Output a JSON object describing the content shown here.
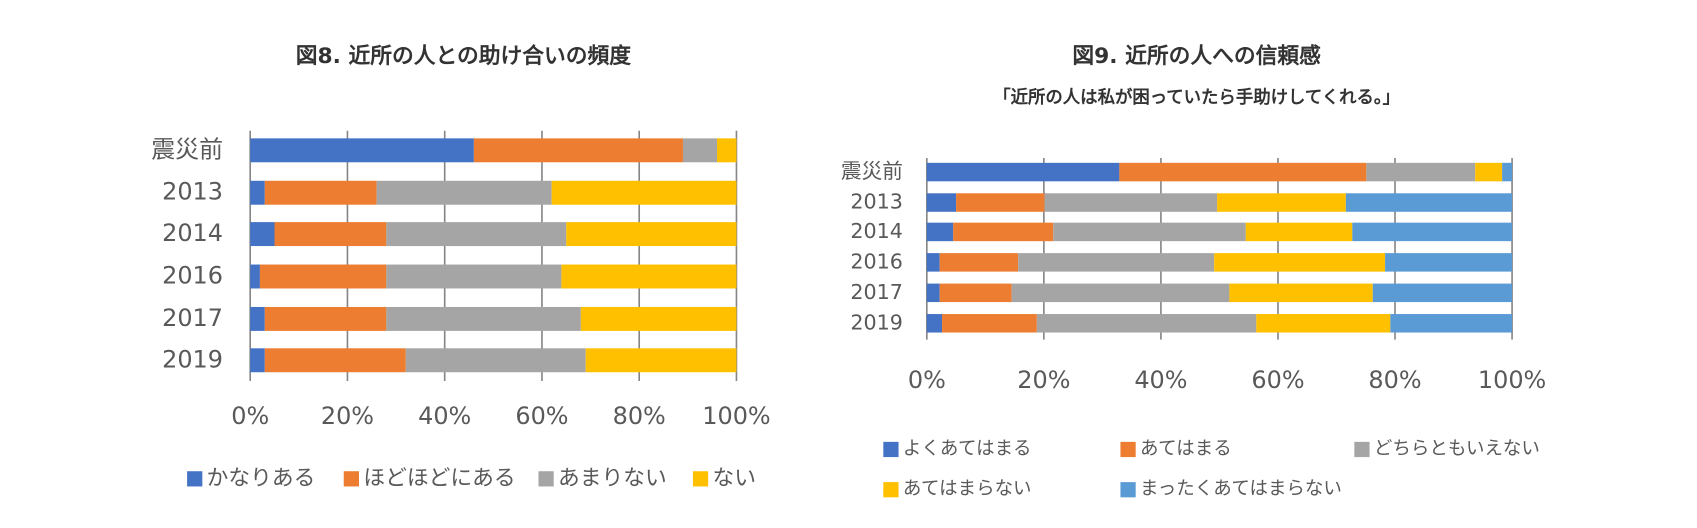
{
  "chart_data": [
    {
      "type": "stacked_barh",
      "title": "図8. 近所の人との助け合いの頻度",
      "categories": [
        "震災前",
        "2013",
        "2014",
        "2016",
        "2017",
        "2019"
      ],
      "series": [
        {
          "name": "かなりある",
          "color": "#4472c4",
          "values": [
            46,
            3,
            5,
            2,
            3,
            3
          ]
        },
        {
          "name": "ほどほどにある",
          "color": "#ed7d31",
          "values": [
            43,
            23,
            23,
            26,
            25,
            29
          ]
        },
        {
          "name": "あまりない",
          "color": "#a5a5a5",
          "values": [
            7,
            36,
            37,
            36,
            40,
            37
          ]
        },
        {
          "name": "ない",
          "color": "#ffc000",
          "values": [
            4,
            38,
            35,
            36,
            32,
            31
          ]
        }
      ],
      "xlim": [
        0,
        100
      ],
      "xticks": [
        {
          "value": 0,
          "label": "0%"
        },
        {
          "value": 20,
          "label": "20%"
        },
        {
          "value": 40,
          "label": "40%"
        },
        {
          "value": 60,
          "label": "60%"
        },
        {
          "value": 80,
          "label": "80%"
        },
        {
          "value": 100,
          "label": "100%"
        }
      ],
      "grid": true,
      "legend": "bottom"
    },
    {
      "type": "stacked_barh",
      "title": "図9. 近所の人への信頼感",
      "subtitle": "「近所の人は私が困っていたら手助けしてくれる。」",
      "categories": [
        "震災前",
        "2013",
        "2014",
        "2016",
        "2017",
        "2019"
      ],
      "series": [
        {
          "name": "よくあてはまる",
          "color": "#4472c4",
          "values": [
            32.9,
            5.0,
            4.5,
            2.2,
            2.2,
            2.6
          ]
        },
        {
          "name": "あてはまる",
          "color": "#ed7d31",
          "values": [
            42.2,
            15.1,
            17.1,
            13.4,
            12.3,
            16.2
          ]
        },
        {
          "name": "どちらともいえない",
          "color": "#a5a5a5",
          "values": [
            18.6,
            29.5,
            32.9,
            33.5,
            37.2,
            37.5
          ]
        },
        {
          "name": "あてはまらない",
          "color": "#ffc000",
          "values": [
            4.6,
            22.0,
            18.2,
            29.2,
            24.5,
            22.9
          ]
        },
        {
          "name": "まったくあてはまらない",
          "color": "#5b9bd5",
          "values": [
            1.7,
            28.4,
            27.3,
            21.7,
            23.8,
            20.8
          ]
        }
      ],
      "xlim": [
        0,
        100
      ],
      "xticks": [
        {
          "value": 0,
          "label": "0%"
        },
        {
          "value": 20,
          "label": "20%"
        },
        {
          "value": 40,
          "label": "40%"
        },
        {
          "value": 60,
          "label": "60%"
        },
        {
          "value": 80,
          "label": "80%"
        },
        {
          "value": 100,
          "label": "100%"
        }
      ],
      "grid": true,
      "legend": "bottom"
    }
  ]
}
